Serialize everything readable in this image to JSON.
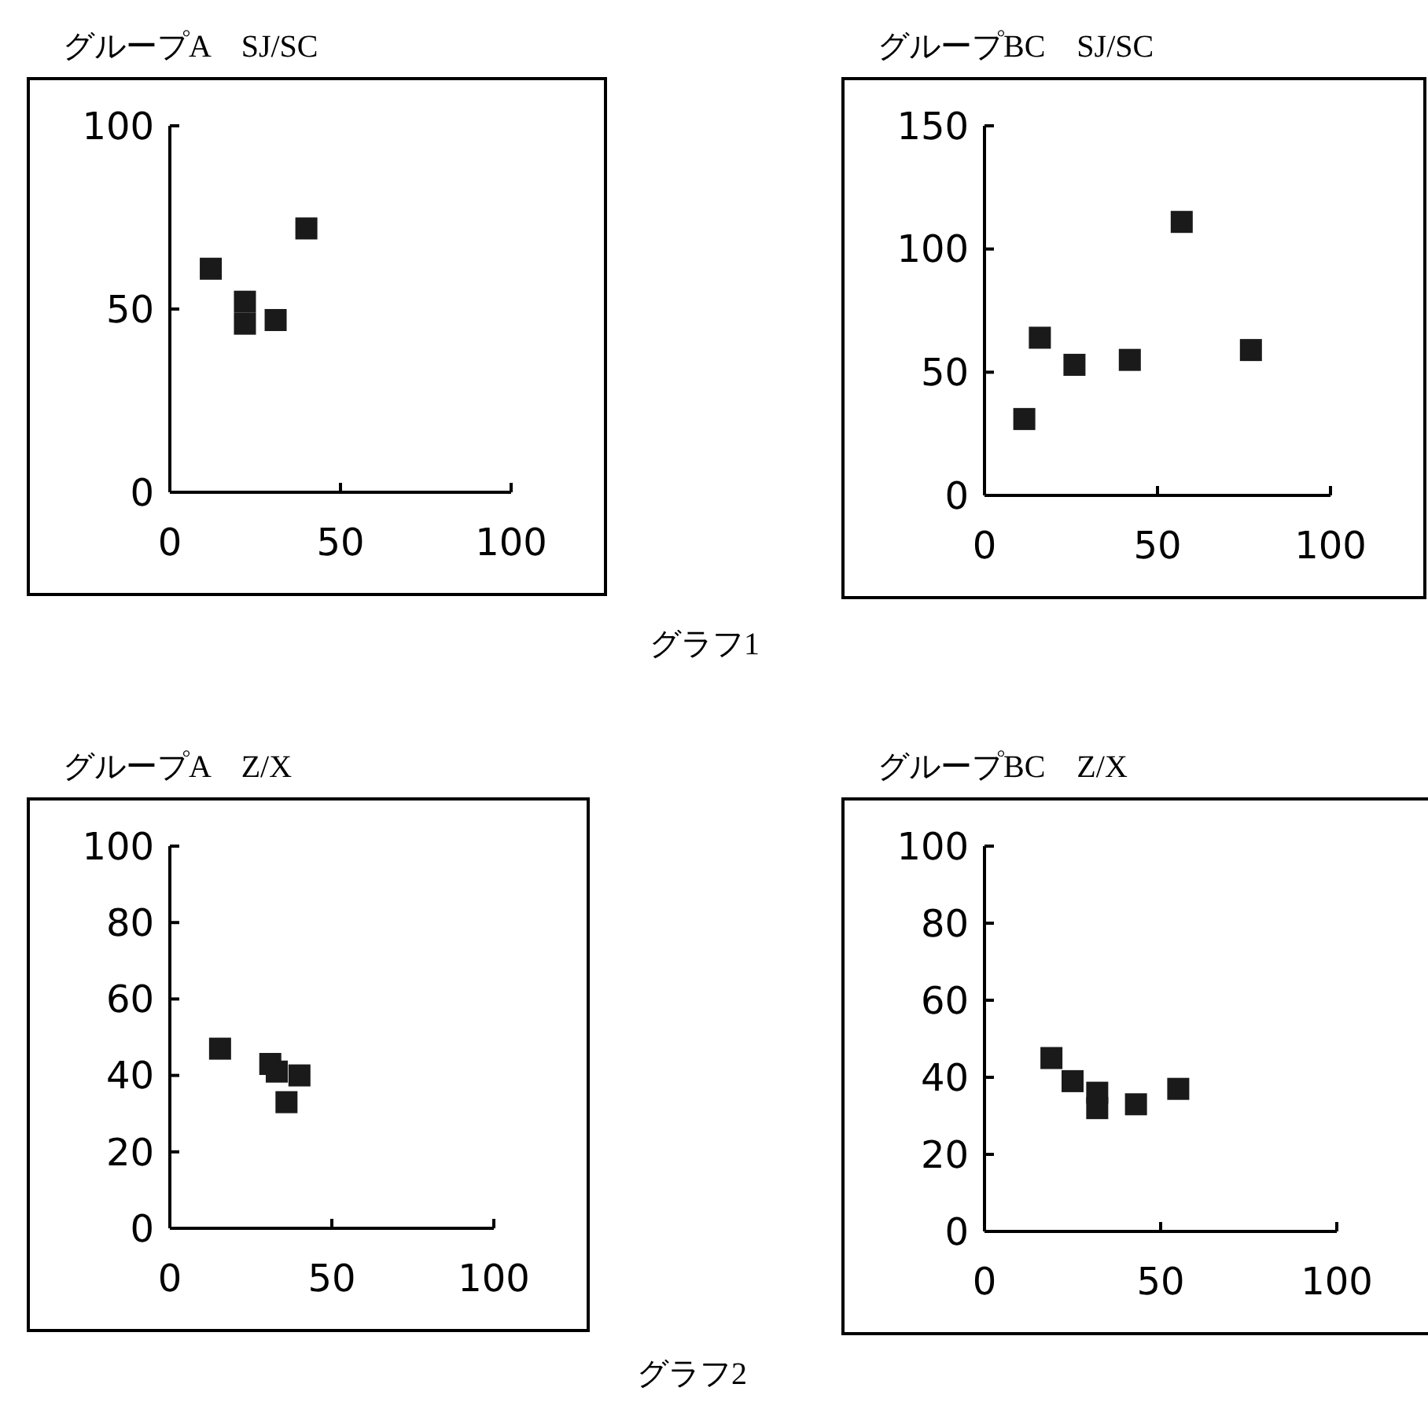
{
  "chart_data": [
    {
      "type": "scatter",
      "title": "グループA　SJ/SC",
      "x": [
        12,
        22,
        22,
        31,
        40
      ],
      "values": [
        61,
        52,
        46,
        47,
        72
      ],
      "color": "#1a1a1a",
      "marker": "square",
      "xlim": [
        0,
        100
      ],
      "ylim": [
        0,
        100
      ],
      "xticks": [
        0,
        50,
        100
      ],
      "yticks": [
        0,
        50,
        100
      ],
      "grid": false,
      "annotations": [
        "グラフ1"
      ]
    },
    {
      "type": "scatter",
      "title": "グループBC　SJ/SC",
      "x": [
        11.5,
        16,
        26,
        42,
        57,
        77
      ],
      "values": [
        31,
        64,
        53,
        55,
        111,
        59
      ],
      "color": "#1a1a1a",
      "marker": "square",
      "xlim": [
        0,
        100
      ],
      "ylim": [
        0,
        150
      ],
      "xticks": [
        0,
        50,
        100
      ],
      "yticks": [
        0,
        50,
        100,
        150
      ],
      "grid": false
    },
    {
      "type": "scatter",
      "title": "グループA　Z/X",
      "x": [
        15.5,
        31,
        33,
        40,
        36
      ],
      "values": [
        47,
        43,
        41,
        40,
        33
      ],
      "color": "#1a1a1a",
      "marker": "square",
      "xlim": [
        0,
        100
      ],
      "ylim": [
        0,
        100
      ],
      "xticks": [
        0,
        50,
        100
      ],
      "yticks": [
        0,
        20,
        40,
        60,
        80,
        100
      ],
      "grid": false,
      "annotations": [
        "グラフ2"
      ]
    },
    {
      "type": "scatter",
      "title": "グループBC　Z/X",
      "x": [
        19,
        25,
        32,
        32,
        43,
        55
      ],
      "values": [
        45,
        39,
        36,
        32,
        33,
        37
      ],
      "color": "#1a1a1a",
      "marker": "square",
      "xlim": [
        0,
        100
      ],
      "ylim": [
        0,
        100
      ],
      "xticks": [
        0,
        50,
        100
      ],
      "yticks": [
        0,
        20,
        40,
        60,
        80,
        100
      ],
      "grid": false
    }
  ]
}
